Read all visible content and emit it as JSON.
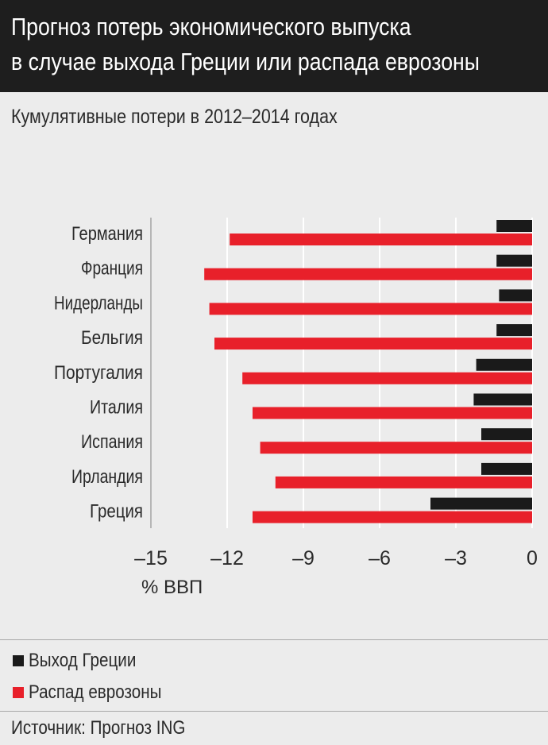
{
  "header": {
    "title_line1": "Прогноз потерь экономического выпуска",
    "title_line2": "в случае выхода Греции или распада еврозоны"
  },
  "subtitle": "Кумулятивные потери в 2012–2014  годах",
  "source": "Источник: Прогноз ING",
  "chart_data": {
    "type": "bar",
    "orientation": "horizontal",
    "categories": [
      "Германия",
      "Франция",
      "Нидерланды",
      "Бельгия",
      "Португалия",
      "Италия",
      "Испания",
      "Ирландия",
      "Греция"
    ],
    "series": [
      {
        "name": "Выход Греции",
        "color": "#1a1a1a",
        "values": [
          -1.4,
          -1.4,
          -1.3,
          -1.4,
          -2.2,
          -2.3,
          -2.0,
          -2.0,
          -4.0
        ]
      },
      {
        "name": "Распад еврозоны",
        "color": "#e8202a",
        "values": [
          -11.9,
          -12.9,
          -12.7,
          -12.5,
          -11.4,
          -11.0,
          -10.7,
          -10.1,
          -11.0
        ]
      }
    ],
    "xlim": [
      -15,
      0
    ],
    "xticks": [
      -15,
      -12,
      -9,
      -6,
      -3,
      0
    ],
    "xtick_labels": [
      "–15",
      "–12",
      "–9",
      "–6",
      "–3",
      "0"
    ],
    "xlabel": "% ВВП",
    "grid": true,
    "legend_placement": "bottom-left"
  }
}
